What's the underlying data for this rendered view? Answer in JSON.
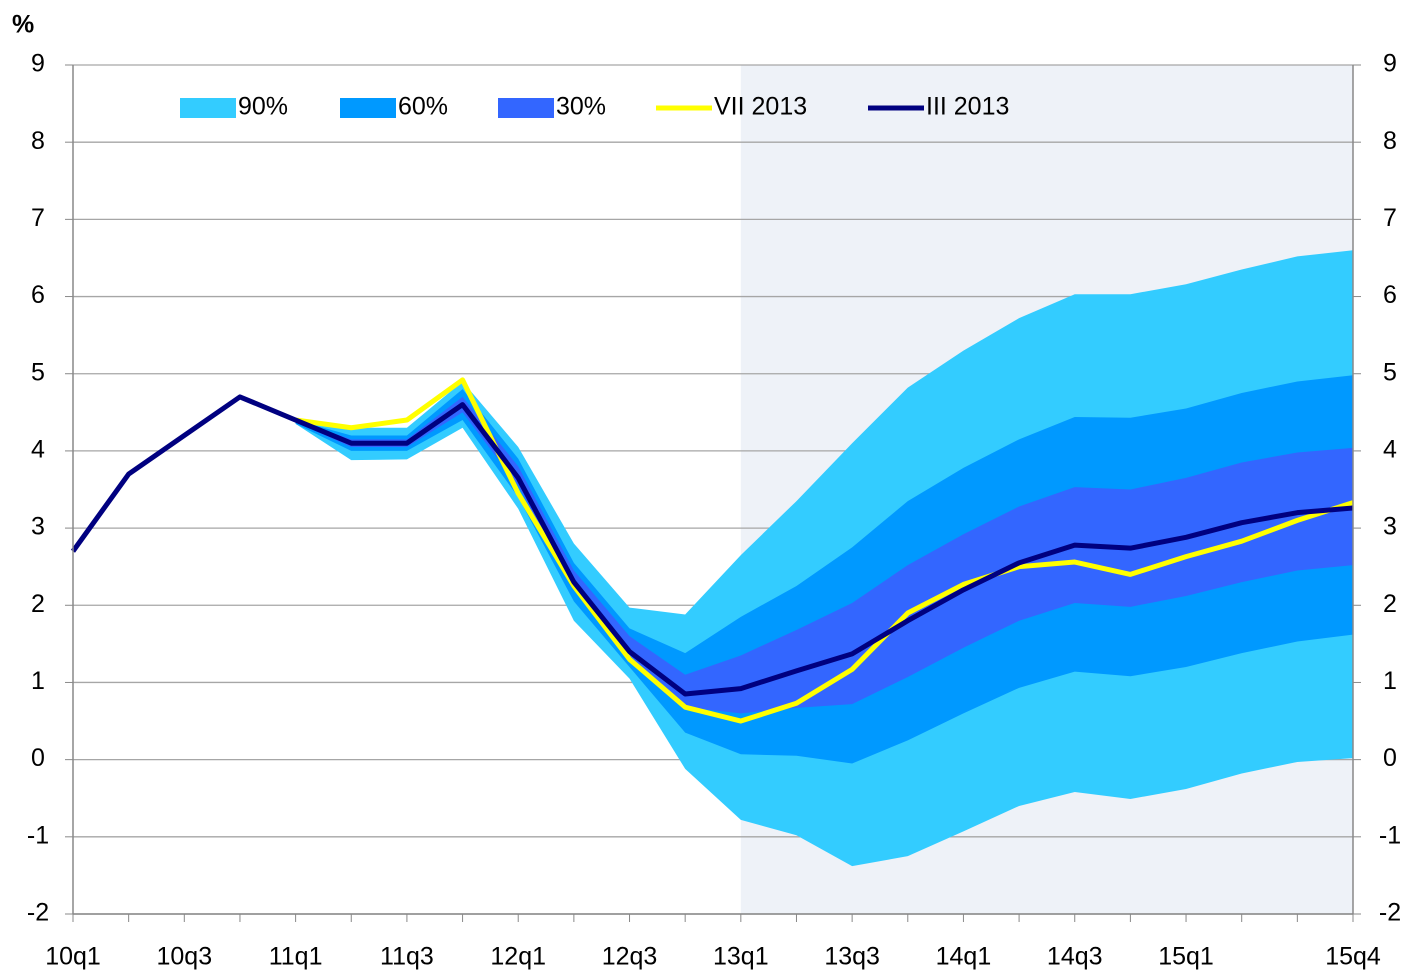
{
  "chart_data": {
    "type": "fan",
    "y_unit_label": "%",
    "categories": [
      "10q1",
      null,
      "10q3",
      null,
      "11q1",
      null,
      "11q3",
      null,
      "12q1",
      null,
      "12q3",
      null,
      "13q1",
      null,
      "13q3",
      null,
      "14q1",
      null,
      "14q3",
      null,
      "15q1",
      null,
      null,
      "15q4"
    ],
    "bands": [
      {
        "name": "90%",
        "color": "#33ccff",
        "low": [
          null,
          null,
          null,
          null,
          4.35,
          3.88,
          3.89,
          4.3,
          3.25,
          1.8,
          1.05,
          -0.12,
          -0.78,
          -0.98,
          -1.38,
          -1.25,
          -0.93,
          -0.6,
          -0.42,
          -0.51,
          -0.38,
          -0.18,
          -0.03,
          0.02
        ],
        "high": [
          null,
          null,
          null,
          null,
          4.4,
          4.3,
          4.3,
          4.9,
          4.05,
          2.8,
          1.97,
          1.88,
          2.65,
          3.35,
          4.1,
          4.82,
          5.3,
          5.72,
          6.03,
          6.03,
          6.16,
          6.35,
          6.52,
          6.6
        ]
      },
      {
        "name": "60%",
        "color": "#0099ff",
        "low": [
          null,
          null,
          null,
          null,
          4.35,
          4.0,
          4.0,
          4.4,
          3.4,
          2.05,
          1.2,
          0.35,
          0.07,
          0.05,
          -0.05,
          0.25,
          0.6,
          0.93,
          1.14,
          1.08,
          1.2,
          1.38,
          1.53,
          1.62
        ],
        "high": [
          null,
          null,
          null,
          null,
          4.4,
          4.2,
          4.2,
          4.8,
          3.9,
          2.55,
          1.7,
          1.38,
          1.85,
          2.25,
          2.75,
          3.35,
          3.78,
          4.15,
          4.44,
          4.43,
          4.55,
          4.75,
          4.9,
          4.98
        ]
      },
      {
        "name": "30%",
        "color": "#3366ff",
        "low": [
          null,
          null,
          null,
          null,
          4.37,
          4.05,
          4.05,
          4.5,
          3.55,
          2.2,
          1.33,
          0.68,
          0.6,
          0.67,
          0.72,
          1.07,
          1.45,
          1.8,
          2.03,
          1.98,
          2.12,
          2.3,
          2.45,
          2.52
        ],
        "high": [
          null,
          null,
          null,
          null,
          4.4,
          4.15,
          4.15,
          4.7,
          3.8,
          2.45,
          1.6,
          1.1,
          1.35,
          1.68,
          2.03,
          2.52,
          2.92,
          3.28,
          3.53,
          3.5,
          3.65,
          3.85,
          3.98,
          4.04
        ]
      }
    ],
    "series": [
      {
        "name": "VII 2013",
        "color": "#ffff00",
        "values": [
          null,
          null,
          null,
          null,
          4.4,
          4.3,
          4.4,
          4.92,
          3.45,
          2.25,
          1.3,
          0.68,
          0.5,
          0.73,
          1.17,
          1.9,
          2.27,
          2.5,
          2.56,
          2.4,
          2.63,
          2.83,
          3.1,
          3.33
        ]
      },
      {
        "name": "III 2013",
        "color": "#000080",
        "values": [
          2.7,
          3.7,
          4.2,
          4.7,
          4.4,
          4.1,
          4.1,
          4.6,
          3.65,
          2.3,
          1.4,
          0.85,
          0.92,
          1.15,
          1.37,
          1.8,
          2.2,
          2.55,
          2.78,
          2.74,
          2.88,
          3.07,
          3.2,
          3.26
        ]
      }
    ],
    "ylim": [
      -2,
      9
    ],
    "yticks": [
      -2,
      -1,
      0,
      1,
      2,
      3,
      4,
      5,
      6,
      7,
      8,
      9
    ],
    "y2lim": [
      -2,
      9
    ],
    "y2ticks": [
      -2,
      -1,
      0,
      1,
      2,
      3,
      4,
      5,
      6,
      7,
      8,
      9
    ],
    "grid": true,
    "legend": "top"
  }
}
